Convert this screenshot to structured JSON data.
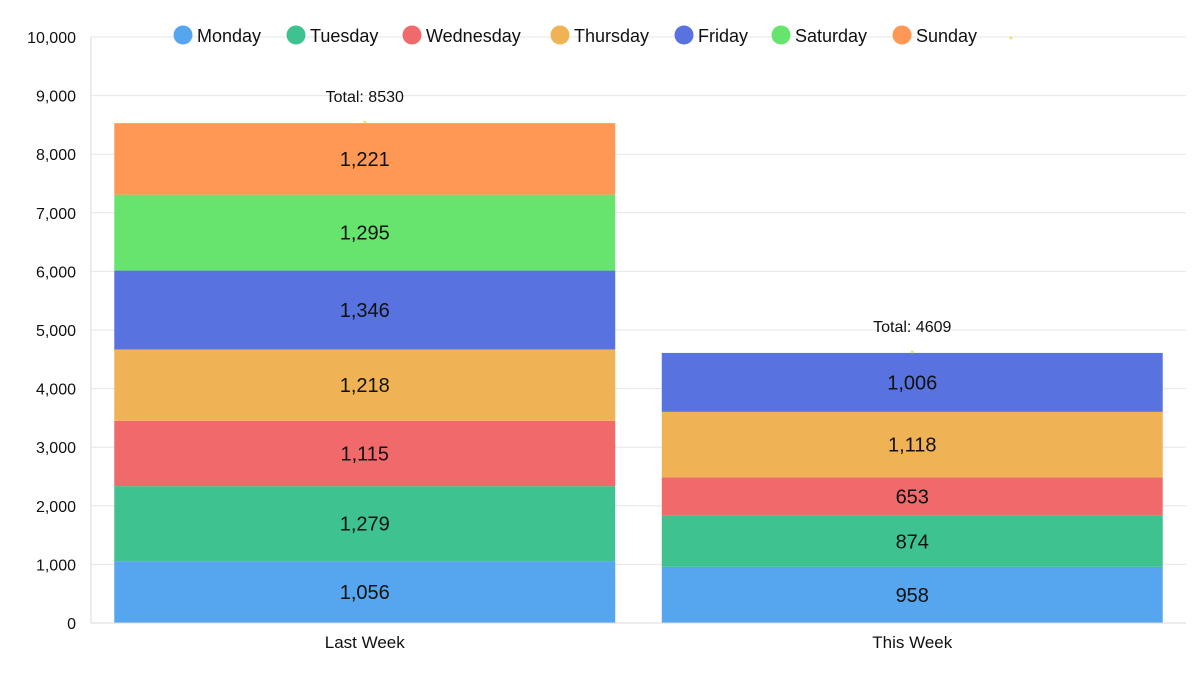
{
  "chart_data": {
    "type": "bar",
    "stacked": true,
    "title": "",
    "xlabel": "",
    "ylabel": "",
    "ylim": [
      0,
      10000
    ],
    "yticks": [
      0,
      1000,
      2000,
      3000,
      4000,
      5000,
      6000,
      7000,
      8000,
      9000,
      10000
    ],
    "ytick_labels": [
      "0",
      "1,000",
      "2,000",
      "3,000",
      "4,000",
      "5,000",
      "6,000",
      "7,000",
      "8,000",
      "9,000",
      "10,000"
    ],
    "grid": true,
    "legend_position": "top",
    "categories": [
      "Last Week",
      "This Week"
    ],
    "series": [
      {
        "name": "Monday",
        "color": "#55A6EE",
        "values": [
          1056,
          958
        ],
        "labels": [
          "1,056",
          "958"
        ]
      },
      {
        "name": "Tuesday",
        "color": "#3EC28F",
        "values": [
          1279,
          874
        ],
        "labels": [
          "1,279",
          "874"
        ]
      },
      {
        "name": "Wednesday",
        "color": "#F06A6C",
        "values": [
          1115,
          653
        ],
        "labels": [
          "1,115",
          "653"
        ]
      },
      {
        "name": "Thursday",
        "color": "#EFB255",
        "values": [
          1218,
          1118
        ],
        "labels": [
          "1,218",
          "1,118"
        ]
      },
      {
        "name": "Friday",
        "color": "#5873E0",
        "values": [
          1346,
          1006
        ],
        "labels": [
          "1,346",
          "1,006"
        ]
      },
      {
        "name": "Saturday",
        "color": "#66E46E",
        "values": [
          1295,
          null
        ],
        "labels": [
          "1,295",
          ""
        ]
      },
      {
        "name": "Sunday",
        "color": "#FF9755",
        "values": [
          1221,
          null
        ],
        "labels": [
          "1,221",
          ""
        ]
      }
    ],
    "totals": [
      "Total: 8530",
      "Total: 4609"
    ]
  }
}
